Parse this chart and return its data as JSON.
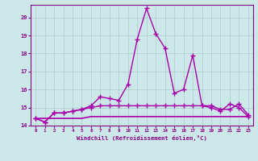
{
  "xlabel": "Windchill (Refroidissement éolien,°C)",
  "x_labels": [
    "0",
    "1",
    "2",
    "3",
    "4",
    "5",
    "6",
    "7",
    "8",
    "9",
    "10",
    "11",
    "12",
    "13",
    "14",
    "15",
    "16",
    "17",
    "18",
    "19",
    "20",
    "21",
    "22",
    "23"
  ],
  "hours": [
    0,
    1,
    2,
    3,
    4,
    5,
    6,
    7,
    8,
    9,
    10,
    11,
    12,
    13,
    14,
    15,
    16,
    17,
    18,
    19,
    20,
    21,
    22,
    23
  ],
  "line1": [
    14.4,
    14.2,
    14.7,
    14.7,
    14.8,
    14.9,
    15.1,
    15.6,
    15.5,
    15.4,
    16.3,
    18.8,
    20.5,
    19.1,
    18.3,
    15.8,
    16.0,
    17.9,
    15.1,
    15.0,
    14.8,
    15.2,
    15.0,
    14.5
  ],
  "line2": [
    14.4,
    14.2,
    14.7,
    14.7,
    14.8,
    14.9,
    15.0,
    15.1,
    15.1,
    15.1,
    15.1,
    15.1,
    15.1,
    15.1,
    15.1,
    15.1,
    15.1,
    15.1,
    15.1,
    15.1,
    14.9,
    14.9,
    15.2,
    14.6
  ],
  "line3": [
    14.4,
    14.4,
    14.4,
    14.4,
    14.4,
    14.4,
    14.5,
    14.5,
    14.5,
    14.5,
    14.5,
    14.5,
    14.5,
    14.5,
    14.5,
    14.5,
    14.5,
    14.5,
    14.5,
    14.5,
    14.5,
    14.5,
    14.5,
    14.5
  ],
  "ylim": [
    14.0,
    20.7
  ],
  "yticks": [
    14,
    15,
    16,
    17,
    18,
    19,
    20
  ],
  "line_color": "#aa00aa",
  "bg_color": "#cce8e8",
  "grid_color": "#aacece",
  "text_color": "#880088",
  "marker": "+",
  "marker_size": 4
}
